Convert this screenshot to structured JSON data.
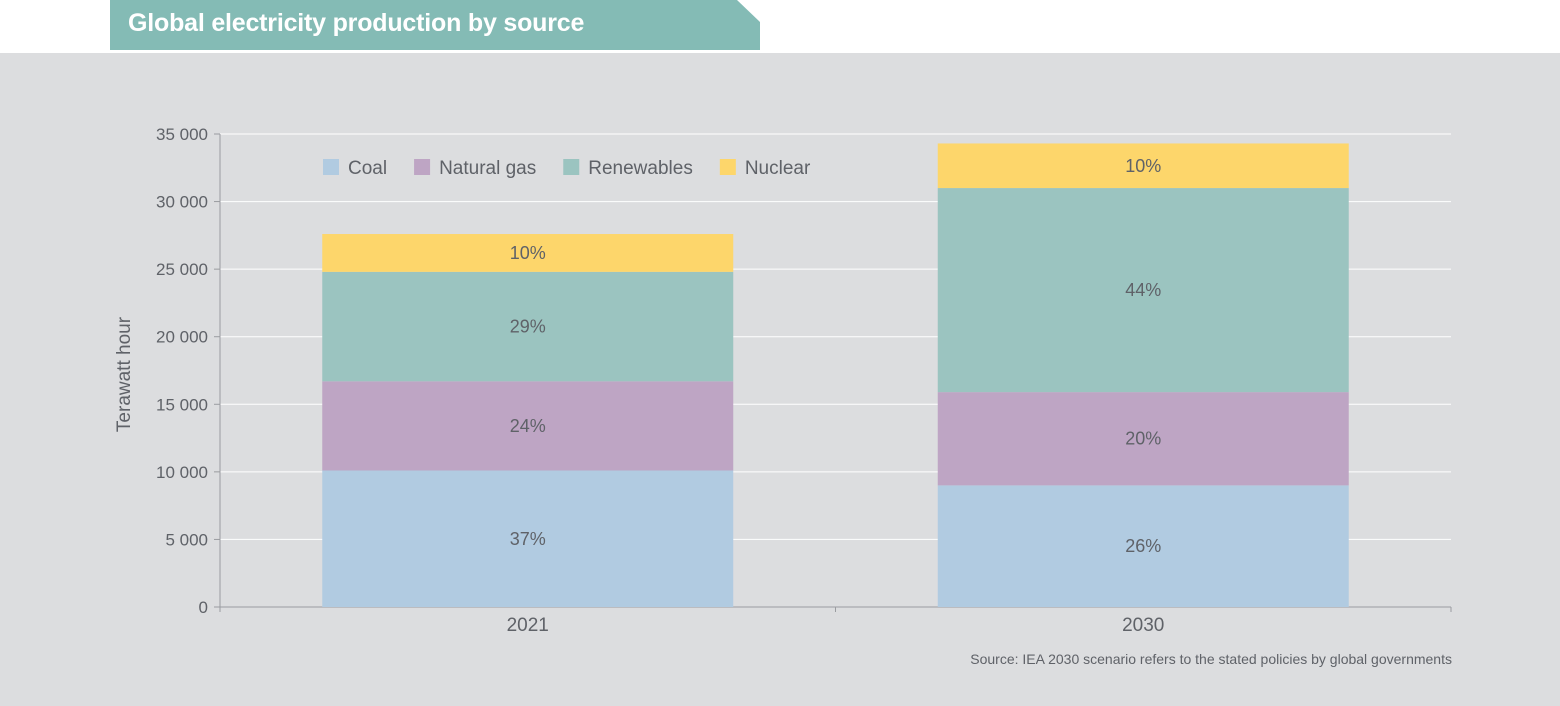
{
  "header": {
    "title": "Global electricity production by source"
  },
  "footer": {
    "source": "Source: IEA 2030 scenario refers to the stated policies by global governments"
  },
  "colors": {
    "title_tab": "#84bbb5",
    "panel": "#dcdddf",
    "grid": "#ffffff",
    "axis": "#9a9ca0",
    "text": "#5f6268"
  },
  "chart_data": {
    "type": "bar",
    "stacked": true,
    "categories": [
      "2021",
      "2030"
    ],
    "ylabel": "Terawatt hour",
    "ylim": [
      0,
      35000
    ],
    "yticks": [
      0,
      5000,
      10000,
      15000,
      20000,
      25000,
      30000,
      35000
    ],
    "ytick_labels": [
      "0",
      "5 000",
      "10 000",
      "15 000",
      "20 000",
      "25 000",
      "30 000",
      "35 000"
    ],
    "grid": true,
    "legend_position": "top-left",
    "series": [
      {
        "name": "Coal",
        "color": "#b1cbe1",
        "values": [
          10100,
          9000
        ],
        "labels": [
          "37%",
          "26%"
        ]
      },
      {
        "name": "Natural gas",
        "color": "#bea5c4",
        "values": [
          6600,
          6900
        ],
        "labels": [
          "24%",
          "20%"
        ]
      },
      {
        "name": "Renewables",
        "color": "#9bc4c0",
        "values": [
          8100,
          15100
        ],
        "labels": [
          "29%",
          "44%"
        ]
      },
      {
        "name": "Nuclear",
        "color": "#fdd66b",
        "values": [
          2800,
          3300
        ],
        "labels": [
          "10%",
          "10%"
        ]
      }
    ]
  }
}
